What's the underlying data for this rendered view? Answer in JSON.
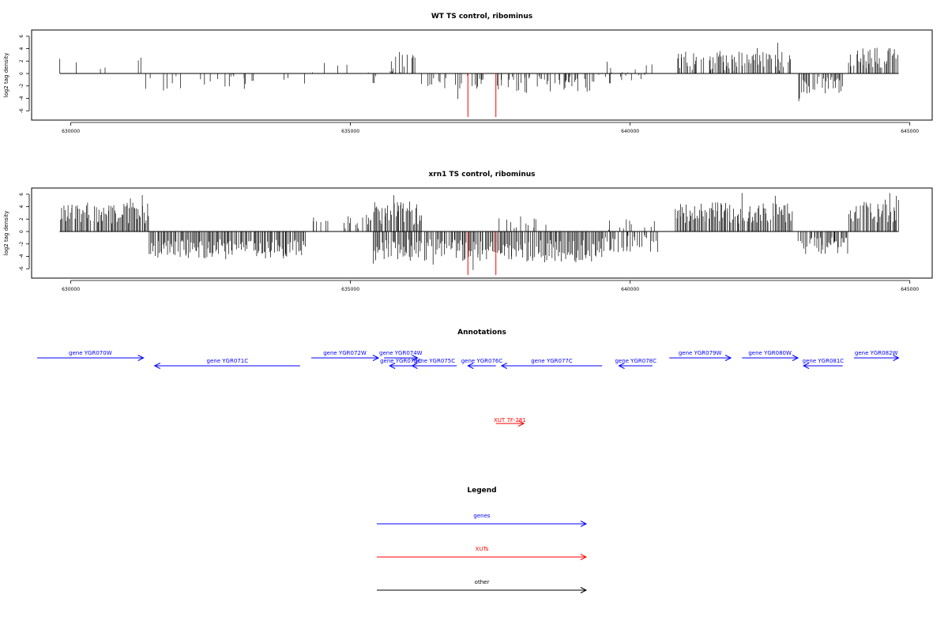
{
  "panels": [
    {
      "id": "wt",
      "title": "WT TS control, ribominus",
      "ylabel": "log2 tag density",
      "yticks": [
        "6",
        "4",
        "2",
        "0",
        "-2",
        "-4",
        "-6"
      ],
      "xticks": [
        "630000",
        "635000",
        "640000",
        "645000"
      ]
    },
    {
      "id": "xrn1",
      "title": "xrn1 TS control, ribominus",
      "ylabel": "log2 tag density",
      "yticks": [
        "6",
        "4",
        "2",
        "0",
        "-2",
        "-4",
        "-6"
      ],
      "xticks": [
        "630000",
        "635000",
        "640000",
        "645000"
      ]
    }
  ],
  "annotations_title": "Annotations",
  "legend_title": "Legend",
  "legend": [
    {
      "label": "genes",
      "color": "#0000ff"
    },
    {
      "label": "XUTs",
      "color": "#ff0000"
    },
    {
      "label": "other",
      "color": "#000000"
    }
  ],
  "genes": [
    {
      "label": "gene YGR070W",
      "start": 629400,
      "end": 631300,
      "strand": "+",
      "row": 0
    },
    {
      "label": "gene YGR071C",
      "start": 631500,
      "end": 634100,
      "strand": "-",
      "row": 1
    },
    {
      "label": "gene YGR072W",
      "start": 634300,
      "end": 635500,
      "strand": "+",
      "row": 0
    },
    {
      "label": "gene YGR074W",
      "start": 635600,
      "end": 636200,
      "strand": "+",
      "row": 0
    },
    {
      "label": "gene YGR073C",
      "start": 635700,
      "end": 636100,
      "strand": "-",
      "row": 1
    },
    {
      "label": "gene YGR075C",
      "start": 636100,
      "end": 636900,
      "strand": "-",
      "row": 1
    },
    {
      "label": "gene YGR076C",
      "start": 637100,
      "end": 637600,
      "strand": "-",
      "row": 1
    },
    {
      "label": "gene YGR077C",
      "start": 637700,
      "end": 639500,
      "strand": "-",
      "row": 1
    },
    {
      "label": "gene YGR078C",
      "start": 639800,
      "end": 640400,
      "strand": "-",
      "row": 1
    },
    {
      "label": "gene YGR079W",
      "start": 640700,
      "end": 641800,
      "strand": "+",
      "row": 0
    },
    {
      "label": "gene YGR080W",
      "start": 642000,
      "end": 643000,
      "strand": "+",
      "row": 0
    },
    {
      "label": "gene YGR081C",
      "start": 643100,
      "end": 643800,
      "strand": "-",
      "row": 1
    },
    {
      "label": "gene YGR082W",
      "start": 644000,
      "end": 644800,
      "strand": "+",
      "row": 0
    }
  ],
  "xuts": [
    {
      "label": "XUT 7F-281",
      "start": 637600,
      "end": 638100,
      "strand": "+"
    }
  ],
  "chart_data": [
    {
      "type": "bar",
      "title": "WT TS control, ribominus",
      "xlabel": "",
      "ylabel": "log2 tag density",
      "xlim": [
        629300,
        645400
      ],
      "ylim": [
        -7.5,
        7
      ],
      "grid": false,
      "baseline_range": [
        629800,
        644800
      ],
      "highlight_x": [
        637100,
        637600
      ],
      "highlight_value": -7,
      "highlight_color": "#ff0000",
      "segments": [
        {
          "start": 629800,
          "end": 631300,
          "sign": 1,
          "mean": 1.3,
          "amp": 0.9,
          "density": 0.12
        },
        {
          "start": 631300,
          "end": 634200,
          "sign": -1,
          "mean": 1.4,
          "amp": 0.9,
          "density": 0.22
        },
        {
          "start": 634200,
          "end": 635400,
          "sign": 1,
          "mean": 1.0,
          "amp": 0.8,
          "density": 0.06
        },
        {
          "start": 635400,
          "end": 635700,
          "sign": -1,
          "mean": 1.6,
          "amp": 1.0,
          "density": 0.35
        },
        {
          "start": 635700,
          "end": 636200,
          "sign": 1,
          "mean": 1.8,
          "amp": 1.2,
          "density": 0.55
        },
        {
          "start": 636200,
          "end": 637600,
          "sign": -1,
          "mean": 1.5,
          "amp": 0.9,
          "density": 0.35
        },
        {
          "start": 637600,
          "end": 639500,
          "sign": -1,
          "mean": 1.6,
          "amp": 1.0,
          "density": 0.55
        },
        {
          "start": 639500,
          "end": 640400,
          "sign": 1,
          "mean": 0.9,
          "amp": 0.6,
          "density": 0.18
        },
        {
          "start": 639500,
          "end": 640400,
          "sign": -1,
          "mean": 0.9,
          "amp": 0.6,
          "density": 0.18
        },
        {
          "start": 640800,
          "end": 642900,
          "sign": 1,
          "mean": 2.0,
          "amp": 1.1,
          "density": 0.7
        },
        {
          "start": 643000,
          "end": 643800,
          "sign": -1,
          "mean": 1.9,
          "amp": 1.0,
          "density": 0.75
        },
        {
          "start": 643900,
          "end": 644800,
          "sign": 1,
          "mean": 2.5,
          "amp": 1.2,
          "density": 0.8
        }
      ]
    },
    {
      "type": "bar",
      "title": "xrn1 TS control, ribominus",
      "xlabel": "",
      "ylabel": "log2 tag density",
      "xlim": [
        629300,
        645400
      ],
      "ylim": [
        -7.5,
        7
      ],
      "grid": false,
      "baseline_range": [
        629800,
        644800
      ],
      "highlight_x": [
        637100,
        637600
      ],
      "highlight_value": -7,
      "highlight_color": "#ff0000",
      "segments": [
        {
          "start": 629800,
          "end": 631400,
          "sign": 1,
          "mean": 3.0,
          "amp": 1.2,
          "density": 0.95
        },
        {
          "start": 631400,
          "end": 634200,
          "sign": -1,
          "mean": 2.8,
          "amp": 1.1,
          "density": 0.95
        },
        {
          "start": 634300,
          "end": 635400,
          "sign": 1,
          "mean": 1.6,
          "amp": 0.9,
          "density": 0.3
        },
        {
          "start": 635400,
          "end": 636300,
          "sign": 1,
          "mean": 3.0,
          "amp": 1.4,
          "density": 0.85
        },
        {
          "start": 635400,
          "end": 637000,
          "sign": -1,
          "mean": 3.0,
          "amp": 1.3,
          "density": 0.85
        },
        {
          "start": 637000,
          "end": 639500,
          "sign": -1,
          "mean": 3.2,
          "amp": 1.3,
          "density": 0.95
        },
        {
          "start": 637600,
          "end": 638600,
          "sign": 1,
          "mean": 1.5,
          "amp": 0.8,
          "density": 0.2
        },
        {
          "start": 639500,
          "end": 640500,
          "sign": -1,
          "mean": 2.0,
          "amp": 1.0,
          "density": 0.6
        },
        {
          "start": 639500,
          "end": 640500,
          "sign": 1,
          "mean": 1.0,
          "amp": 0.7,
          "density": 0.2
        },
        {
          "start": 640800,
          "end": 642900,
          "sign": 1,
          "mean": 3.0,
          "amp": 1.2,
          "density": 0.9
        },
        {
          "start": 643000,
          "end": 643900,
          "sign": -1,
          "mean": 2.3,
          "amp": 1.0,
          "density": 0.85
        },
        {
          "start": 643900,
          "end": 644800,
          "sign": 1,
          "mean": 3.3,
          "amp": 1.3,
          "density": 0.9
        }
      ]
    }
  ]
}
